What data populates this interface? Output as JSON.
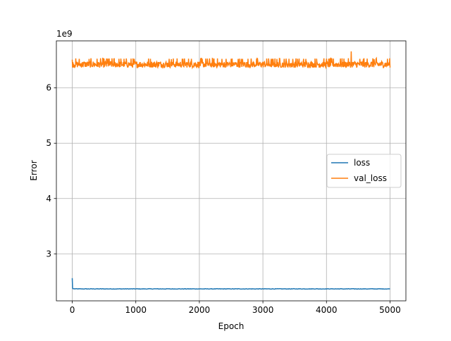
{
  "chart_data": {
    "type": "line",
    "title": "",
    "xlabel": "Epoch",
    "ylabel": "Error",
    "y_offset_text": "1e9",
    "y_scale": 1000000000,
    "xlim": [
      -250,
      5250
    ],
    "ylim": [
      2150000000,
      6850000000
    ],
    "x_ticks": [
      0,
      1000,
      2000,
      3000,
      4000,
      5000
    ],
    "x_tick_labels": [
      "0",
      "1000",
      "2000",
      "3000",
      "4000",
      "5000"
    ],
    "y_ticks": [
      3000000000,
      4000000000,
      5000000000,
      6000000000
    ],
    "y_tick_labels": [
      "3",
      "4",
      "5",
      "6"
    ],
    "grid": true,
    "legend_position": "center-right",
    "series": [
      {
        "name": "loss",
        "color": "#1f77b4",
        "x": [
          0,
          5,
          10,
          20,
          50,
          100,
          500,
          1000,
          1500,
          2000,
          2500,
          3000,
          3500,
          4000,
          4500,
          5000
        ],
        "values": [
          2560000000,
          2380000000,
          2370000000,
          2368000000,
          2367000000,
          2366000000,
          2366000000,
          2366000000,
          2366000000,
          2366000000,
          2366000000,
          2366000000,
          2366000000,
          2366000000,
          2366000000,
          2366000000
        ],
        "noise_amplitude": 4000000
      },
      {
        "name": "val_loss",
        "color": "#ff7f0e",
        "x_start": 0,
        "x_end": 5000,
        "baseline": 6420000000,
        "noise_amplitude": 100000000,
        "spikes": [
          {
            "x": 0,
            "value": 6510000000
          },
          {
            "x": 560,
            "value": 6530000000
          },
          {
            "x": 1560,
            "value": 6520000000
          },
          {
            "x": 3230,
            "value": 6390000000
          },
          {
            "x": 4390,
            "value": 6660000000
          },
          {
            "x": 4750,
            "value": 6520000000
          }
        ]
      }
    ]
  }
}
